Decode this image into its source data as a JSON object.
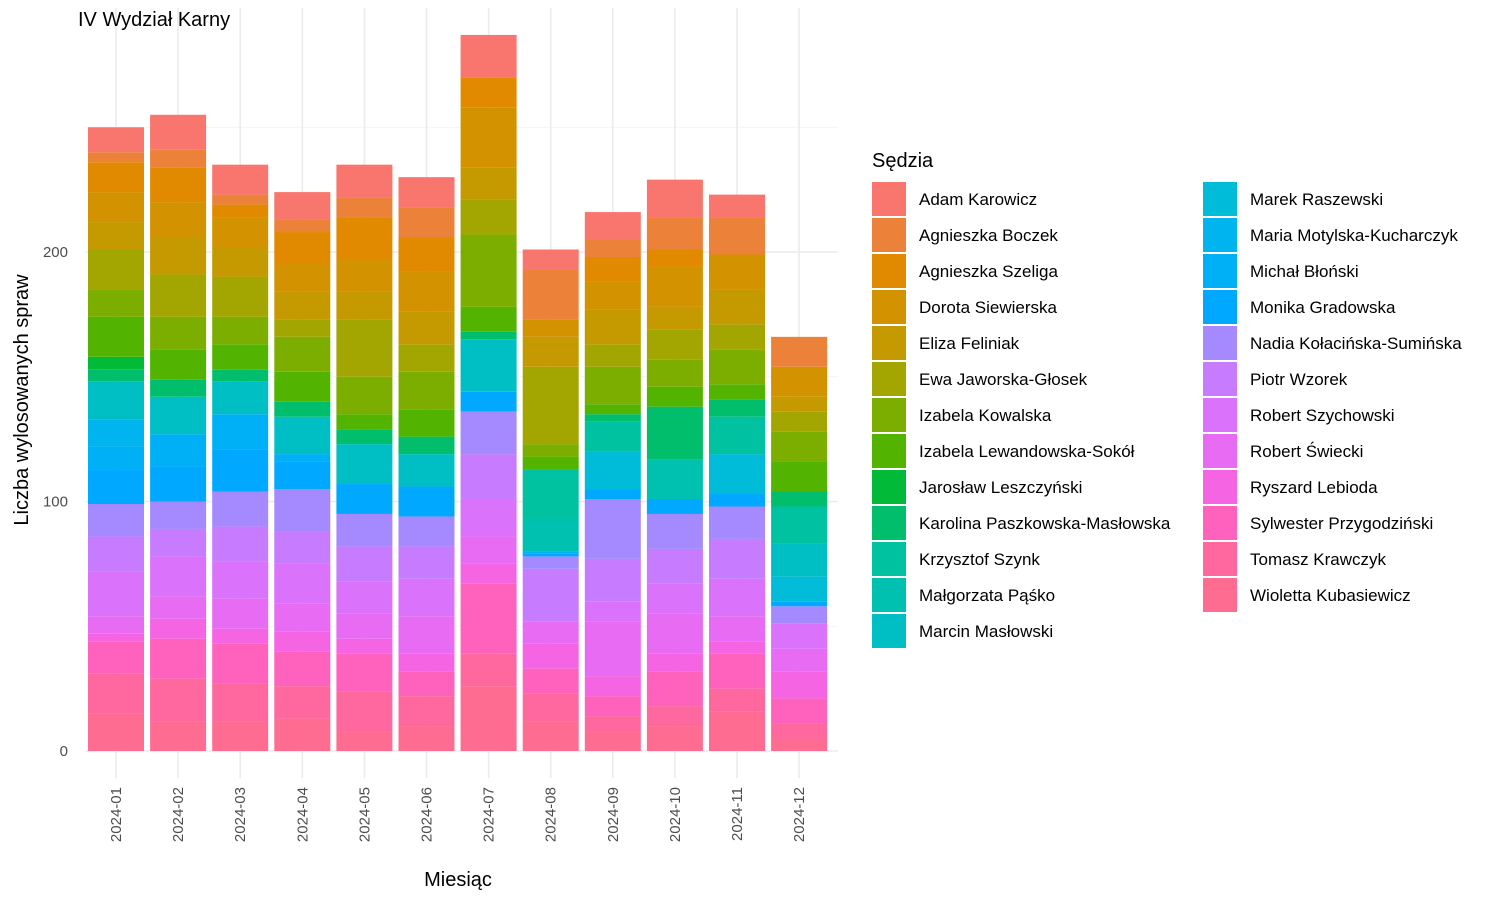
{
  "chart_data": {
    "type": "bar",
    "stacked": true,
    "title": "IV Wydział Karny",
    "xlabel": "Miesiąc",
    "ylabel": "Liczba wylosowanych spraw",
    "ylim": [
      0,
      290
    ],
    "y_ticks": [
      0,
      100,
      200
    ],
    "grid": true,
    "legend_title": "Sędzia",
    "legend_position": "right",
    "categories": [
      "2024-01",
      "2024-02",
      "2024-03",
      "2024-04",
      "2024-05",
      "2024-06",
      "2024-07",
      "2024-08",
      "2024-09",
      "2024-10",
      "2024-11",
      "2024-12"
    ],
    "series": [
      {
        "name": "Wioletta Kubasiewicz",
        "color": "#FF6C91",
        "values": [
          15,
          12,
          12,
          13,
          8,
          10,
          26,
          12,
          8,
          10,
          16,
          5
        ]
      },
      {
        "name": "Tomasz Krawczyk",
        "color": "#FF689F",
        "values": [
          16,
          17,
          15,
          13,
          16,
          12,
          13,
          11,
          6,
          8,
          9,
          6
        ]
      },
      {
        "name": "Sylwester Przygodziński",
        "color": "#FF62BC",
        "values": [
          13,
          16,
          16,
          14,
          15,
          10,
          28,
          10,
          8,
          14,
          14,
          10
        ]
      },
      {
        "name": "Ryszard Lebioda",
        "color": "#F564E3",
        "values": [
          3,
          8,
          6,
          8,
          6,
          7,
          8,
          10,
          8,
          7,
          5,
          11
        ]
      },
      {
        "name": "Robert Świecki",
        "color": "#E76BF3",
        "values": [
          7,
          9,
          12,
          11,
          10,
          15,
          11,
          9,
          22,
          16,
          10,
          9
        ]
      },
      {
        "name": "Robert Szychowski",
        "color": "#DB72FB",
        "values": [
          18,
          16,
          15,
          16,
          13,
          15,
          15,
          0,
          8,
          12,
          15,
          10
        ]
      },
      {
        "name": "Piotr Wzorek",
        "color": "#C77CFF",
        "values": [
          14,
          11,
          14,
          13,
          14,
          13,
          18,
          21,
          17,
          14,
          16,
          0
        ]
      },
      {
        "name": "Nadia Kołacińska-Sumińska",
        "color": "#A58AFF",
        "values": [
          13,
          11,
          14,
          17,
          13,
          12,
          17,
          5,
          24,
          14,
          13,
          7
        ]
      },
      {
        "name": "Monika Gradowska",
        "color": "#00A9FF",
        "values": [
          14,
          14,
          17,
          11,
          12,
          12,
          8,
          1,
          4,
          6,
          5,
          2
        ]
      },
      {
        "name": "Michał Błoński",
        "color": "#00B0F6",
        "values": [
          9,
          13,
          14,
          3,
          0,
          0,
          0,
          1,
          0,
          0,
          0,
          0
        ]
      },
      {
        "name": "Maria Motylska-Kucharczyk",
        "color": "#00B4EF",
        "values": [
          11,
          0,
          0,
          0,
          0,
          0,
          0,
          0,
          0,
          0,
          0,
          0
        ]
      },
      {
        "name": "Marek Raszewski",
        "color": "#00BCD8",
        "values": [
          0,
          0,
          0,
          0,
          0,
          0,
          0,
          0,
          15,
          0,
          16,
          10
        ]
      },
      {
        "name": "Marcin Masłowski",
        "color": "#00BFC4",
        "values": [
          15,
          15,
          13,
          15,
          16,
          13,
          21,
          0,
          0,
          0,
          0,
          13
        ]
      },
      {
        "name": "Małgorzata Pąśko",
        "color": "#00C0AF",
        "values": [
          0,
          0,
          0,
          0,
          0,
          0,
          0,
          13,
          0,
          16,
          0,
          0
        ]
      },
      {
        "name": "Krzysztof Szynk",
        "color": "#00C1A0",
        "values": [
          0,
          0,
          0,
          0,
          0,
          0,
          0,
          20,
          12,
          0,
          15,
          15
        ]
      },
      {
        "name": "Karolina Paszkowska-Masłowska",
        "color": "#00BE6C",
        "values": [
          5,
          7,
          5,
          6,
          6,
          7,
          3,
          0,
          3,
          21,
          7,
          6
        ]
      },
      {
        "name": "Jarosław Leszczyński",
        "color": "#00BA38",
        "values": [
          5,
          0,
          0,
          0,
          0,
          0,
          0,
          0,
          0,
          0,
          0,
          0
        ]
      },
      {
        "name": "Izabela Lewandowska-Sokół",
        "color": "#53B400",
        "values": [
          16,
          12,
          10,
          12,
          6,
          11,
          10,
          5,
          4,
          8,
          6,
          12
        ]
      },
      {
        "name": "Izabela Kowalska",
        "color": "#7CAE00",
        "values": [
          11,
          13,
          11,
          14,
          15,
          15,
          29,
          5,
          15,
          11,
          14,
          12
        ]
      },
      {
        "name": "Ewa Jaworska-Głosek",
        "color": "#A3A500",
        "values": [
          16,
          17,
          16,
          7,
          23,
          11,
          14,
          31,
          9,
          12,
          10,
          8
        ]
      },
      {
        "name": "Eliza Feliniak",
        "color": "#C49A00",
        "values": [
          11,
          15,
          12,
          11,
          11,
          13,
          13,
          12,
          14,
          9,
          14,
          6
        ]
      },
      {
        "name": "Dorota Siewierska",
        "color": "#D39200",
        "values": [
          12,
          14,
          12,
          11,
          13,
          16,
          24,
          7,
          11,
          16,
          14,
          12
        ]
      },
      {
        "name": "Agnieszka Szeliga",
        "color": "#E18A00",
        "values": [
          12,
          14,
          5,
          13,
          17,
          14,
          12,
          0,
          10,
          7,
          0,
          0
        ]
      },
      {
        "name": "Agnieszka Boczek",
        "color": "#EC8239",
        "values": [
          4,
          7,
          4,
          5,
          8,
          12,
          0,
          20,
          7,
          13,
          15,
          12
        ]
      },
      {
        "name": "Adam Karowicz",
        "color": "#F8766D",
        "values": [
          10,
          14,
          12,
          11,
          13,
          12,
          17,
          8,
          11,
          15,
          9,
          0
        ]
      }
    ],
    "legend_order": [
      "Adam Karowicz",
      "Agnieszka Boczek",
      "Agnieszka Szeliga",
      "Dorota Siewierska",
      "Eliza Feliniak",
      "Ewa Jaworska-Głosek",
      "Izabela Kowalska",
      "Izabela Lewandowska-Sokół",
      "Jarosław Leszczyński",
      "Karolina Paszkowska-Masłowska",
      "Krzysztof Szynk",
      "Małgorzata Pąśko",
      "Marcin Masłowski",
      "Marek Raszewski",
      "Maria Motylska-Kucharczyk",
      "Michał Błoński",
      "Monika Gradowska",
      "Nadia Kołacińska-Sumińska",
      "Piotr Wzorek",
      "Robert Szychowski",
      "Robert Świecki",
      "Ryszard Lebioda",
      "Sylwester Przygodziński",
      "Tomasz Krawczyk",
      "Wioletta Kubasiewicz"
    ]
  }
}
